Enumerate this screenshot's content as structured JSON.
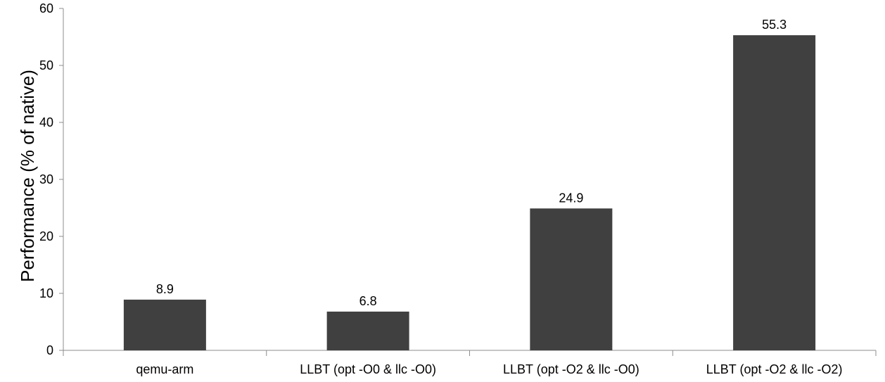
{
  "chart_data": {
    "type": "bar",
    "title": "",
    "xlabel": "",
    "ylabel": "Performance (% of native)",
    "ylim": [
      0,
      60
    ],
    "yticks": [
      0,
      10,
      20,
      30,
      40,
      50,
      60
    ],
    "ytick_labels": [
      "0",
      "10",
      "20",
      "30",
      "40",
      "50",
      "60"
    ],
    "categories": [
      "qemu-arm",
      "LLBT (opt -O0 & llc -O0)",
      "LLBT (opt -O2 & llc -O0)",
      "LLBT (opt -O2 & llc -O2)"
    ],
    "values": [
      8.9,
      6.8,
      24.9,
      55.3
    ],
    "value_labels": [
      "8.9",
      "6.8",
      "24.9",
      "55.3"
    ],
    "grid": false,
    "legend": "none",
    "bar_color": "#404040",
    "axis_color": "#8c8c8c"
  }
}
